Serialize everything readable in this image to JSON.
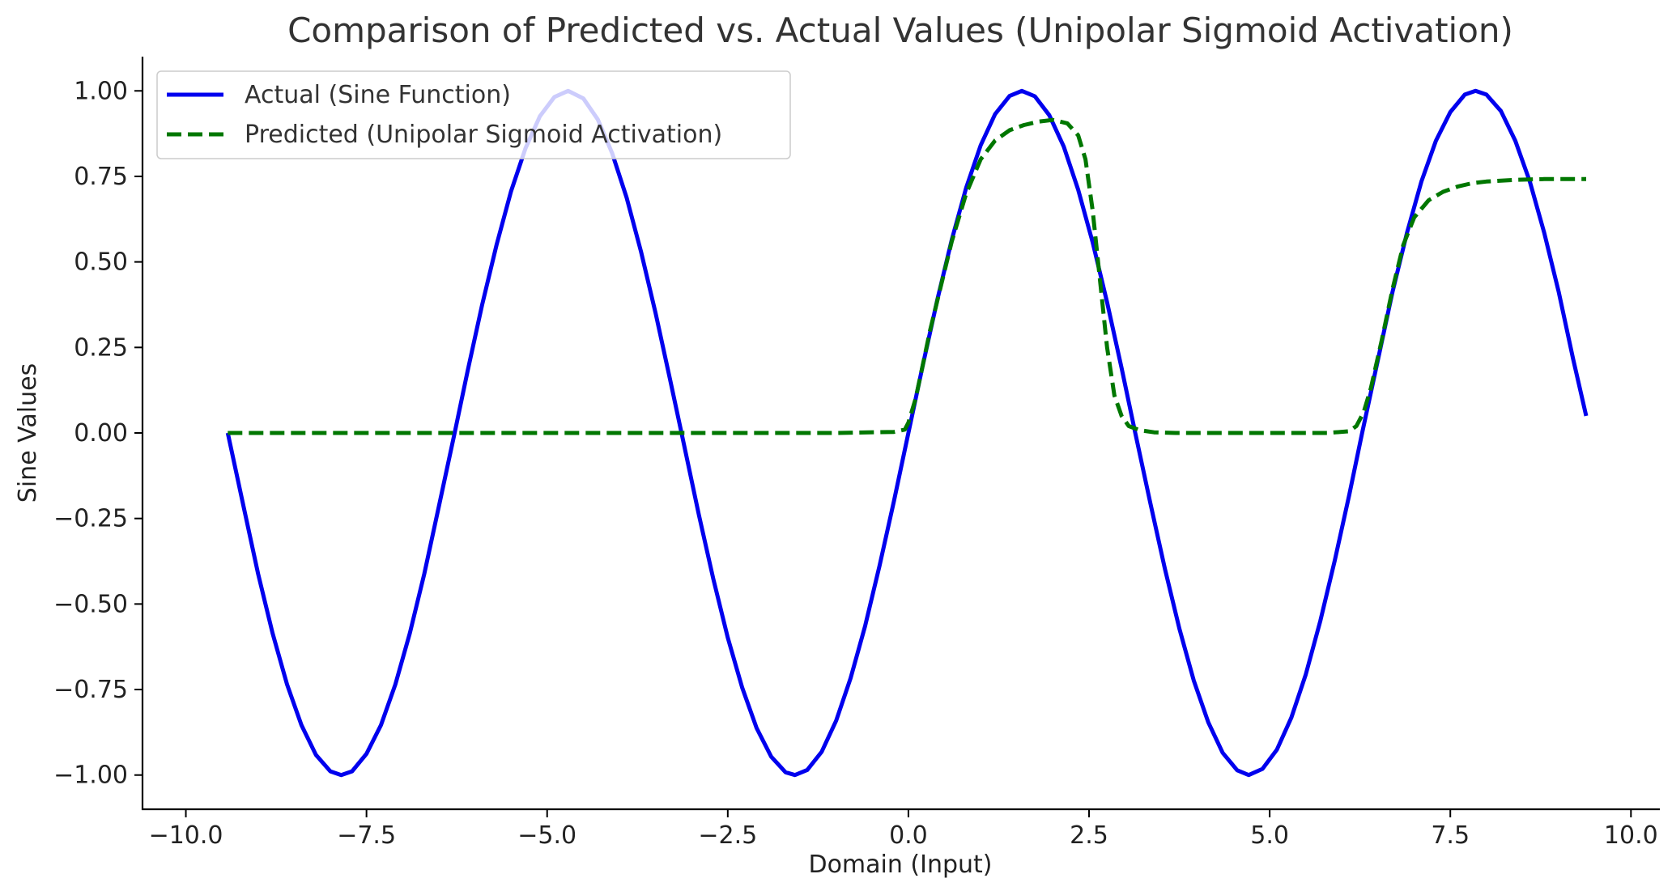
{
  "chart_data": {
    "type": "line",
    "title": "Comparison of Predicted vs. Actual Values (Unipolar Sigmoid Activation)",
    "xlabel": "Domain (Input)",
    "ylabel": "Sine Values",
    "xlim": [
      -10.6,
      10.4
    ],
    "ylim": [
      -1.1,
      1.1
    ],
    "xticks": [
      -10.0,
      -7.5,
      -5.0,
      -2.5,
      0.0,
      2.5,
      5.0,
      7.5,
      10.0
    ],
    "xtick_labels": [
      "−10.0",
      "−7.5",
      "−5.0",
      "−2.5",
      "0.0",
      "2.5",
      "5.0",
      "7.5",
      "10.0"
    ],
    "yticks": [
      -1.0,
      -0.75,
      -0.5,
      -0.25,
      0.0,
      0.25,
      0.5,
      0.75,
      1.0
    ],
    "ytick_labels": [
      "−1.00",
      "−0.75",
      "−0.50",
      "−0.25",
      "0.00",
      "0.25",
      "0.50",
      "0.75",
      "1.00"
    ],
    "grid": false,
    "legend_position": "top-left",
    "series": [
      {
        "name": "Actual (Sine Function)",
        "color": "#0000ee",
        "style": "solid",
        "x": [
          -9.42,
          -9.2,
          -9.0,
          -8.8,
          -8.6,
          -8.4,
          -8.2,
          -8.0,
          -7.85,
          -7.7,
          -7.5,
          -7.3,
          -7.1,
          -6.9,
          -6.7,
          -6.5,
          -6.28,
          -6.1,
          -5.9,
          -5.7,
          -5.5,
          -5.3,
          -5.1,
          -4.9,
          -4.71,
          -4.5,
          -4.3,
          -4.1,
          -3.9,
          -3.7,
          -3.5,
          -3.3,
          -3.14,
          -2.9,
          -2.7,
          -2.5,
          -2.3,
          -2.1,
          -1.9,
          -1.7,
          -1.57,
          -1.4,
          -1.2,
          -1.0,
          -0.8,
          -0.6,
          -0.4,
          -0.2,
          0.0,
          0.2,
          0.4,
          0.6,
          0.8,
          1.0,
          1.2,
          1.4,
          1.57,
          1.75,
          1.95,
          2.15,
          2.35,
          2.55,
          2.75,
          2.95,
          3.14,
          3.35,
          3.55,
          3.75,
          3.95,
          4.15,
          4.35,
          4.55,
          4.71,
          4.9,
          5.1,
          5.3,
          5.5,
          5.7,
          5.9,
          6.1,
          6.28,
          6.5,
          6.7,
          6.9,
          7.1,
          7.3,
          7.5,
          7.7,
          7.85,
          8.0,
          8.2,
          8.4,
          8.6,
          8.8,
          9.0,
          9.2,
          9.38
        ],
        "y": [
          0.0,
          -0.216,
          -0.412,
          -0.585,
          -0.735,
          -0.854,
          -0.941,
          -0.989,
          -1.0,
          -0.989,
          -0.938,
          -0.854,
          -0.735,
          -0.585,
          -0.412,
          -0.216,
          0.0,
          0.182,
          0.374,
          0.55,
          0.706,
          0.832,
          0.926,
          0.982,
          1.0,
          0.978,
          0.917,
          0.818,
          0.688,
          0.53,
          0.351,
          0.158,
          0.0,
          -0.239,
          -0.427,
          -0.598,
          -0.745,
          -0.863,
          -0.946,
          -0.992,
          -1.0,
          -0.985,
          -0.932,
          -0.841,
          -0.717,
          -0.565,
          -0.389,
          -0.199,
          0.0,
          0.199,
          0.389,
          0.565,
          0.717,
          0.841,
          0.932,
          0.985,
          1.0,
          0.984,
          0.929,
          0.837,
          0.711,
          0.557,
          0.382,
          0.19,
          0.0,
          -0.207,
          -0.397,
          -0.572,
          -0.724,
          -0.846,
          -0.935,
          -0.986,
          -1.0,
          -0.982,
          -0.926,
          -0.832,
          -0.706,
          -0.55,
          -0.374,
          -0.182,
          0.0,
          0.216,
          0.412,
          0.585,
          0.735,
          0.854,
          0.938,
          0.989,
          1.0,
          0.989,
          0.941,
          0.854,
          0.735,
          0.585,
          0.412,
          0.216,
          0.05
        ]
      },
      {
        "name": "Predicted (Unipolar Sigmoid Activation)",
        "color": "#007700",
        "style": "dashed",
        "x": [
          -9.42,
          -5.0,
          -1.0,
          -0.2,
          -0.05,
          0.0,
          0.1,
          0.2,
          0.3,
          0.45,
          0.6,
          0.8,
          1.0,
          1.2,
          1.4,
          1.6,
          1.8,
          2.0,
          2.2,
          2.35,
          2.45,
          2.55,
          2.65,
          2.75,
          2.85,
          2.95,
          3.05,
          3.2,
          3.4,
          3.7,
          4.2,
          5.0,
          5.8,
          6.1,
          6.2,
          6.3,
          6.4,
          6.55,
          6.7,
          6.85,
          7.0,
          7.2,
          7.4,
          7.6,
          7.8,
          8.0,
          8.4,
          8.8,
          9.38
        ],
        "y": [
          0.0,
          0.0,
          0.0,
          0.003,
          0.01,
          0.03,
          0.1,
          0.2,
          0.3,
          0.43,
          0.56,
          0.7,
          0.8,
          0.855,
          0.885,
          0.9,
          0.91,
          0.915,
          0.905,
          0.87,
          0.8,
          0.65,
          0.45,
          0.25,
          0.11,
          0.05,
          0.02,
          0.008,
          0.002,
          0.0,
          0.0,
          0.0,
          0.0,
          0.005,
          0.02,
          0.06,
          0.13,
          0.27,
          0.42,
          0.55,
          0.63,
          0.68,
          0.705,
          0.72,
          0.73,
          0.735,
          0.74,
          0.742,
          0.742
        ]
      }
    ]
  }
}
